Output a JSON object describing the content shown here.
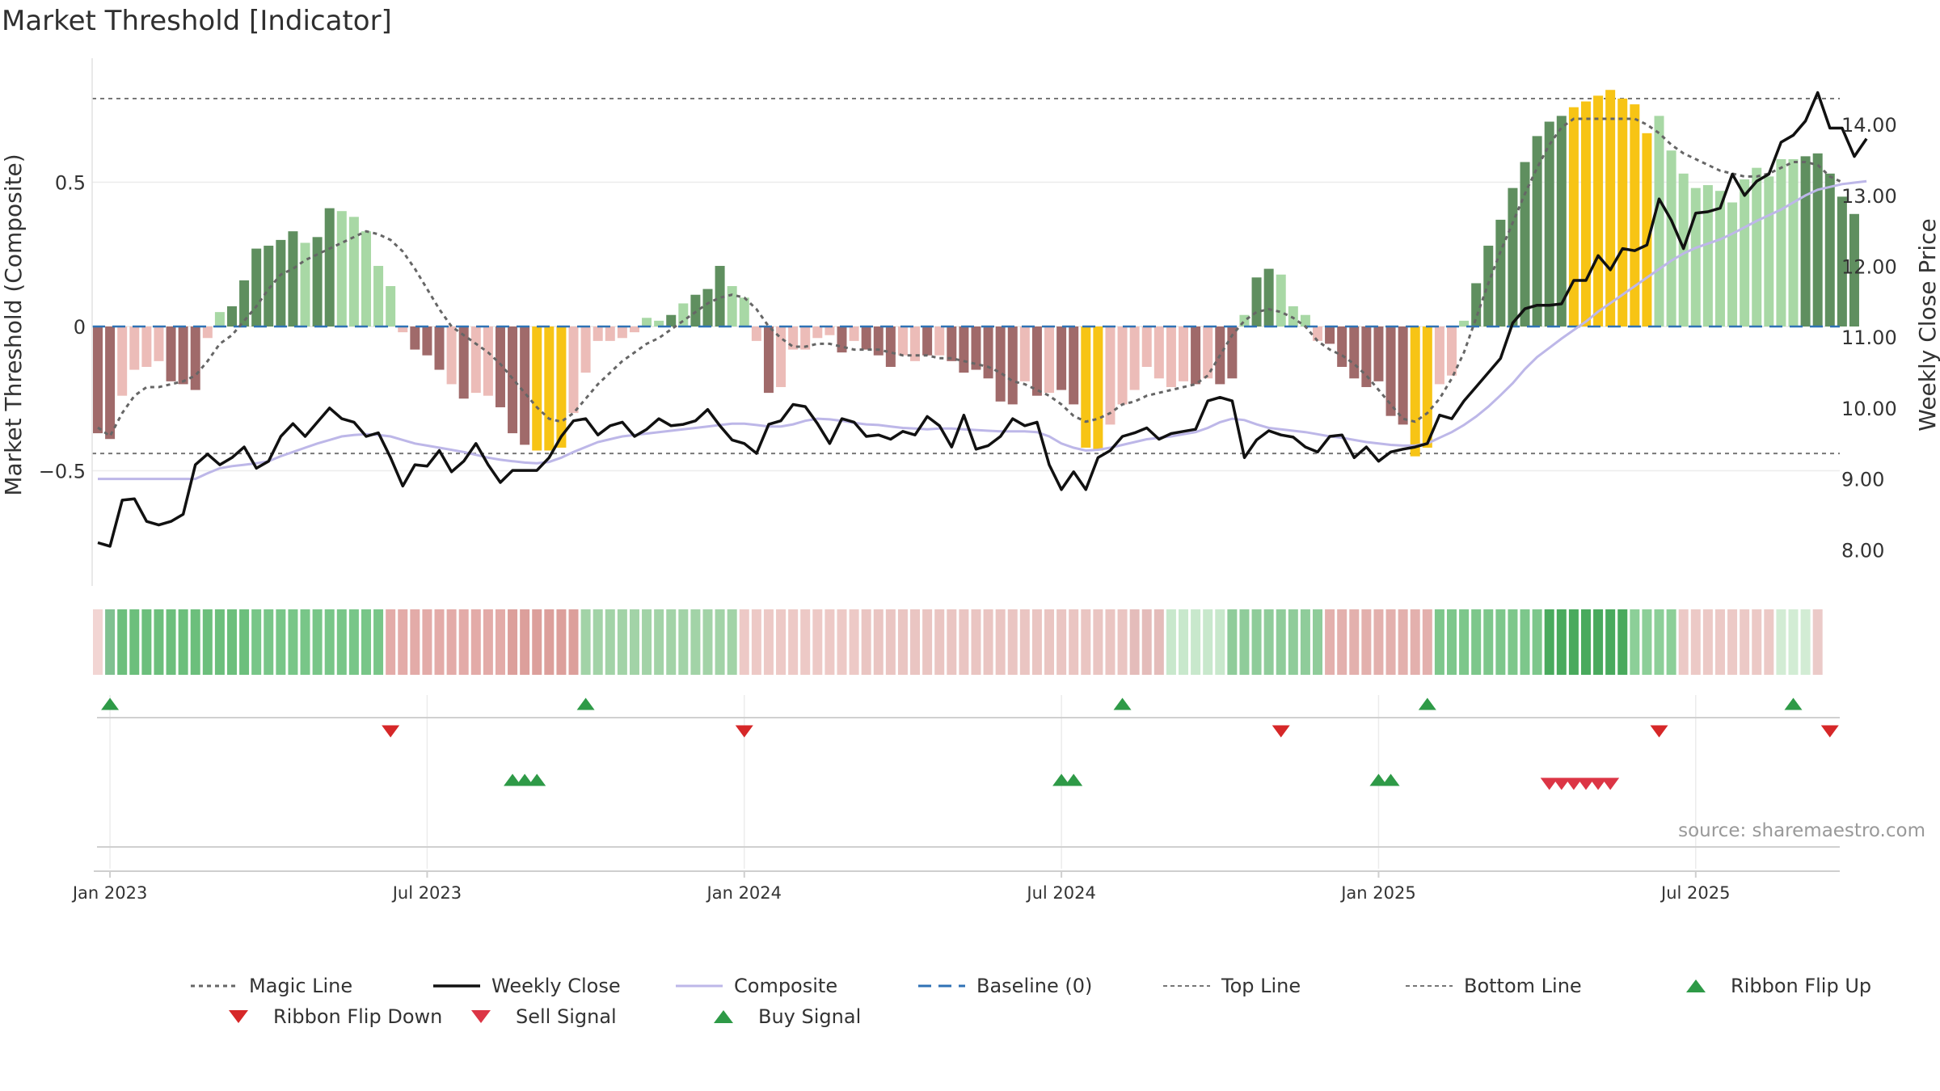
{
  "chart_data": {
    "type": "bar",
    "title": "Market Threshold [Indicator]",
    "ylabel_left": "Market Threshold (Composite)",
    "ylabel_right": "Weekly Close Price",
    "source": "source: sharemaestro.com",
    "ylim_left": [
      -0.9,
      0.95
    ],
    "ylim_right": [
      7.5,
      15.0
    ],
    "left_ticks": [
      {
        "v": 0.5,
        "label": "0.5"
      },
      {
        "v": 0,
        "label": "0"
      },
      {
        "v": -0.5,
        "label": "−0.5"
      }
    ],
    "right_ticks": [
      {
        "v": 8,
        "label": "8.00"
      },
      {
        "v": 9,
        "label": "9.00"
      },
      {
        "v": 10,
        "label": "10.00"
      },
      {
        "v": 11,
        "label": "11.00"
      },
      {
        "v": 12,
        "label": "12.00"
      },
      {
        "v": 13,
        "label": "13.00"
      },
      {
        "v": 14,
        "label": "14.00"
      }
    ],
    "top_line": 0.79,
    "bottom_line": -0.44,
    "x_ticks": [
      {
        "i": 1,
        "label": "Jan 2023"
      },
      {
        "i": 27,
        "label": "Jul 2023"
      },
      {
        "i": 53,
        "label": "Jan 2024"
      },
      {
        "i": 79,
        "label": "Jul 2024"
      },
      {
        "i": 105,
        "label": "Jan 2025"
      },
      {
        "i": 131,
        "label": "Jul 2025"
      }
    ],
    "colors": {
      "dark_green": "#5f8f5f",
      "light_green": "#a8d8a5",
      "dark_red": "#a06a6a",
      "light_red": "#ecbcb8",
      "extreme": "#f7c415",
      "close": "#111111",
      "composite": "#bdb7e8",
      "magic": "#666666",
      "baseline": "#2f72b5",
      "threshold": "#777777",
      "buy": "#2e9a47",
      "sell": "#dc3545",
      "flip_up": "#2e9a47",
      "flip_down": "#d62728"
    },
    "legend": [
      {
        "key": "magic",
        "label": "Magic Line"
      },
      {
        "key": "close",
        "label": "Weekly Close"
      },
      {
        "key": "composite",
        "label": "Composite"
      },
      {
        "key": "baseline",
        "label": "Baseline (0)"
      },
      {
        "key": "top",
        "label": "Top Line"
      },
      {
        "key": "bottom",
        "label": "Bottom Line"
      },
      {
        "key": "flipup",
        "label": "Ribbon Flip Up"
      },
      {
        "key": "flipdown",
        "label": "Ribbon Flip Down"
      },
      {
        "key": "sell",
        "label": "Sell Signal"
      },
      {
        "key": "buy",
        "label": "Buy Signal"
      }
    ],
    "bars": [
      -0.37,
      -0.39,
      -0.24,
      -0.15,
      -0.14,
      -0.12,
      -0.19,
      -0.2,
      -0.22,
      -0.04,
      0.05,
      0.07,
      0.16,
      0.27,
      0.28,
      0.3,
      0.33,
      0.29,
      0.31,
      0.41,
      0.4,
      0.38,
      0.33,
      0.21,
      0.14,
      -0.02,
      -0.08,
      -0.1,
      -0.15,
      -0.2,
      -0.25,
      -0.23,
      -0.24,
      -0.28,
      -0.37,
      -0.41,
      -0.43,
      -0.43,
      -0.42,
      -0.3,
      -0.16,
      -0.05,
      -0.05,
      -0.04,
      -0.02,
      0.03,
      0.02,
      0.04,
      0.08,
      0.11,
      0.13,
      0.21,
      0.14,
      0.1,
      -0.05,
      -0.23,
      -0.21,
      -0.08,
      -0.08,
      -0.04,
      -0.03,
      -0.09,
      -0.05,
      -0.08,
      -0.1,
      -0.14,
      -0.1,
      -0.12,
      -0.1,
      -0.1,
      -0.12,
      -0.16,
      -0.15,
      -0.18,
      -0.26,
      -0.27,
      -0.19,
      -0.24,
      -0.23,
      -0.22,
      -0.27,
      -0.42,
      -0.43,
      -0.34,
      -0.27,
      -0.22,
      -0.14,
      -0.18,
      -0.21,
      -0.19,
      -0.2,
      -0.18,
      -0.2,
      -0.18,
      0.04,
      0.17,
      0.2,
      0.18,
      0.07,
      0.04,
      -0.05,
      -0.06,
      -0.14,
      -0.18,
      -0.21,
      -0.19,
      -0.31,
      -0.34,
      -0.45,
      -0.42,
      -0.2,
      -0.17,
      0.02,
      0.15,
      0.28,
      0.37,
      0.48,
      0.57,
      0.66,
      0.71,
      0.73,
      0.76,
      0.78,
      0.8,
      0.82,
      0.79,
      0.77,
      0.67,
      0.73,
      0.61,
      0.53,
      0.48,
      0.49,
      0.47,
      0.43,
      0.51,
      0.55,
      0.52,
      0.58,
      0.58,
      0.59,
      0.6,
      0.53,
      0.45,
      0.39
    ],
    "bar_colors": [
      "dr",
      "dr",
      "lr",
      "lr",
      "lr",
      "lr",
      "dr",
      "dr",
      "dr",
      "lr",
      "lg",
      "dg",
      "dg",
      "dg",
      "dg",
      "dg",
      "dg",
      "lg",
      "dg",
      "dg",
      "lg",
      "lg",
      "lg",
      "lg",
      "lg",
      "lr",
      "dr",
      "dr",
      "dr",
      "lr",
      "dr",
      "lr",
      "lr",
      "dr",
      "dr",
      "dr",
      "ex",
      "ex",
      "ex",
      "lr",
      "lr",
      "lr",
      "lr",
      "lr",
      "lr",
      "lg",
      "lg",
      "dg",
      "lg",
      "dg",
      "dg",
      "dg",
      "lg",
      "lg",
      "lr",
      "dr",
      "lr",
      "lr",
      "lr",
      "lr",
      "lr",
      "dr",
      "lr",
      "dr",
      "dr",
      "dr",
      "lr",
      "lr",
      "dr",
      "lr",
      "dr",
      "dr",
      "dr",
      "dr",
      "dr",
      "dr",
      "lr",
      "dr",
      "lr",
      "dr",
      "dr",
      "ex",
      "ex",
      "lr",
      "lr",
      "lr",
      "lr",
      "lr",
      "lr",
      "lr",
      "dr",
      "lr",
      "dr",
      "dr",
      "lg",
      "dg",
      "dg",
      "lg",
      "lg",
      "lg",
      "lr",
      "dr",
      "dr",
      "dr",
      "dr",
      "dr",
      "dr",
      "dr",
      "ex",
      "ex",
      "lr",
      "lr",
      "lg",
      "dg",
      "dg",
      "dg",
      "dg",
      "dg",
      "dg",
      "dg",
      "dg",
      "ex",
      "ex",
      "ex",
      "ex",
      "ex",
      "ex",
      "ex",
      "lg",
      "lg",
      "lg",
      "lg",
      "lg",
      "lg",
      "lg",
      "lg",
      "lg",
      "lg",
      "lg",
      "lg",
      "dg",
      "dg",
      "dg",
      "dg",
      "dg",
      "lg",
      "lg",
      "lg"
    ],
    "weekly_close": [
      8.1,
      8.05,
      8.7,
      8.72,
      8.4,
      8.35,
      8.4,
      8.5,
      9.2,
      9.35,
      9.2,
      9.3,
      9.45,
      9.15,
      9.25,
      9.6,
      9.78,
      9.6,
      9.8,
      10.0,
      9.85,
      9.8,
      9.6,
      9.65,
      9.3,
      8.9,
      9.2,
      9.18,
      9.4,
      9.1,
      9.25,
      9.5,
      9.2,
      8.95,
      9.12,
      9.12,
      9.12,
      9.3,
      9.6,
      9.82,
      9.85,
      9.62,
      9.75,
      9.8,
      9.6,
      9.7,
      9.85,
      9.75,
      9.77,
      9.82,
      9.98,
      9.75,
      9.55,
      9.5,
      9.36,
      9.77,
      9.82,
      10.05,
      10.02,
      9.78,
      9.5,
      9.85,
      9.8,
      9.6,
      9.62,
      9.56,
      9.67,
      9.62,
      9.88,
      9.75,
      9.45,
      9.9,
      9.42,
      9.47,
      9.6,
      9.85,
      9.75,
      9.8,
      9.2,
      8.85,
      9.1,
      8.85,
      9.3,
      9.4,
      9.6,
      9.65,
      9.72,
      9.56,
      9.64,
      9.67,
      9.7,
      10.1,
      10.15,
      10.1,
      9.3,
      9.55,
      9.68,
      9.62,
      9.59,
      9.45,
      9.38,
      9.6,
      9.62,
      9.3,
      9.45,
      9.25,
      9.38,
      9.42,
      9.45,
      9.5,
      9.9,
      9.85,
      10.1,
      10.3,
      10.5,
      10.7,
      11.2,
      11.4,
      11.45,
      11.45,
      11.47,
      11.8,
      11.8,
      12.15,
      11.95,
      12.25,
      12.22,
      12.3,
      12.95,
      12.65,
      12.25,
      12.75,
      12.77,
      12.82,
      13.3,
      13.0,
      13.2,
      13.3,
      13.75,
      13.85,
      14.05,
      14.45,
      13.95,
      13.95,
      13.55,
      13.8
    ],
    "composite": [
      9.0,
      9.0,
      9.0,
      9.0,
      9.0,
      9.0,
      9.0,
      9.0,
      9.0,
      9.08,
      9.15,
      9.18,
      9.2,
      9.22,
      9.25,
      9.32,
      9.38,
      9.44,
      9.5,
      9.55,
      9.6,
      9.62,
      9.63,
      9.62,
      9.6,
      9.55,
      9.5,
      9.47,
      9.44,
      9.41,
      9.38,
      9.34,
      9.3,
      9.27,
      9.25,
      9.23,
      9.22,
      9.24,
      9.3,
      9.38,
      9.45,
      9.52,
      9.56,
      9.6,
      9.62,
      9.64,
      9.66,
      9.68,
      9.7,
      9.72,
      9.74,
      9.76,
      9.78,
      9.78,
      9.76,
      9.74,
      9.74,
      9.77,
      9.82,
      9.85,
      9.84,
      9.82,
      9.79,
      9.77,
      9.76,
      9.74,
      9.72,
      9.71,
      9.7,
      9.71,
      9.71,
      9.7,
      9.69,
      9.68,
      9.67,
      9.67,
      9.67,
      9.66,
      9.6,
      9.5,
      9.44,
      9.4,
      9.41,
      9.44,
      9.48,
      9.52,
      9.56,
      9.58,
      9.6,
      9.63,
      9.66,
      9.72,
      9.8,
      9.85,
      9.83,
      9.77,
      9.72,
      9.7,
      9.68,
      9.66,
      9.63,
      9.6,
      9.58,
      9.55,
      9.52,
      9.5,
      9.48,
      9.47,
      9.47,
      9.5,
      9.58,
      9.66,
      9.76,
      9.88,
      10.02,
      10.18,
      10.35,
      10.55,
      10.72,
      10.85,
      10.98,
      11.1,
      11.22,
      11.36,
      11.48,
      11.6,
      11.72,
      11.84,
      11.96,
      12.08,
      12.18,
      12.26,
      12.32,
      12.38,
      12.46,
      12.55,
      12.64,
      12.72,
      12.8,
      12.9,
      13.0,
      13.08,
      13.12,
      13.16,
      13.18,
      13.2
    ],
    "magic": [
      -0.35,
      -0.38,
      -0.3,
      -0.24,
      -0.21,
      -0.21,
      -0.2,
      -0.19,
      -0.17,
      -0.12,
      -0.06,
      -0.03,
      0.02,
      0.07,
      0.13,
      0.18,
      0.2,
      0.23,
      0.25,
      0.27,
      0.29,
      0.31,
      0.33,
      0.32,
      0.3,
      0.26,
      0.2,
      0.13,
      0.06,
      0.0,
      -0.03,
      -0.06,
      -0.09,
      -0.13,
      -0.18,
      -0.23,
      -0.28,
      -0.32,
      -0.33,
      -0.3,
      -0.25,
      -0.2,
      -0.16,
      -0.12,
      -0.09,
      -0.06,
      -0.04,
      -0.01,
      0.02,
      0.05,
      0.08,
      0.1,
      0.11,
      0.1,
      0.06,
      0.0,
      -0.04,
      -0.07,
      -0.07,
      -0.06,
      -0.06,
      -0.07,
      -0.08,
      -0.08,
      -0.08,
      -0.09,
      -0.1,
      -0.1,
      -0.1,
      -0.11,
      -0.11,
      -0.12,
      -0.13,
      -0.14,
      -0.16,
      -0.19,
      -0.2,
      -0.22,
      -0.24,
      -0.27,
      -0.31,
      -0.33,
      -0.32,
      -0.3,
      -0.27,
      -0.26,
      -0.24,
      -0.23,
      -0.22,
      -0.21,
      -0.2,
      -0.17,
      -0.1,
      -0.03,
      0.02,
      0.05,
      0.06,
      0.05,
      0.03,
      0.0,
      -0.05,
      -0.08,
      -0.1,
      -0.13,
      -0.17,
      -0.22,
      -0.27,
      -0.32,
      -0.33,
      -0.3,
      -0.25,
      -0.18,
      -0.09,
      0.03,
      0.15,
      0.26,
      0.36,
      0.46,
      0.55,
      0.63,
      0.69,
      0.72,
      0.72,
      0.72,
      0.72,
      0.72,
      0.72,
      0.7,
      0.67,
      0.63,
      0.6,
      0.58,
      0.56,
      0.54,
      0.53,
      0.52,
      0.52,
      0.53,
      0.55,
      0.57,
      0.57,
      0.56,
      0.52,
      0.5
    ],
    "ribbon": [
      {
        "from": 0,
        "to": 1,
        "color": "#f2d5d3"
      },
      {
        "from": 1,
        "to": 2,
        "color": "#7fc190"
      },
      {
        "from": 2,
        "to": 13,
        "color": "#6cbf7c"
      },
      {
        "from": 13,
        "to": 24,
        "color": "#78c688"
      },
      {
        "from": 24,
        "to": 34,
        "color": "#e3aba8"
      },
      {
        "from": 34,
        "to": 40,
        "color": "#dc9f9b"
      },
      {
        "from": 40,
        "to": 53,
        "color": "#a2d3a7"
      },
      {
        "from": 53,
        "to": 63,
        "color": "#edc9c6"
      },
      {
        "from": 63,
        "to": 85,
        "color": "#eac5c2"
      },
      {
        "from": 85,
        "to": 88,
        "color": "#e4bcba"
      },
      {
        "from": 88,
        "to": 93,
        "color": "#c8e8cc"
      },
      {
        "from": 93,
        "to": 101,
        "color": "#8fcc9a"
      },
      {
        "from": 101,
        "to": 110,
        "color": "#e3b0ad"
      },
      {
        "from": 110,
        "to": 119,
        "color": "#7dc78b"
      },
      {
        "from": 119,
        "to": 126,
        "color": "#49aa5d"
      },
      {
        "from": 126,
        "to": 130,
        "color": "#8ccf98"
      },
      {
        "from": 130,
        "to": 138,
        "color": "#ecc9c6"
      },
      {
        "from": 138,
        "to": 141,
        "color": "#d2ecd4"
      },
      {
        "from": 141,
        "to": 142,
        "color": "#ebcac8"
      }
    ],
    "flip_up": [
      1,
      40,
      84,
      109,
      139
    ],
    "flip_down": [
      24,
      53,
      97,
      128,
      142
    ],
    "buy_signals": [
      34,
      35,
      36,
      79,
      80,
      105,
      106
    ],
    "sell_signals": [
      119,
      120,
      121,
      122,
      123,
      124
    ]
  }
}
